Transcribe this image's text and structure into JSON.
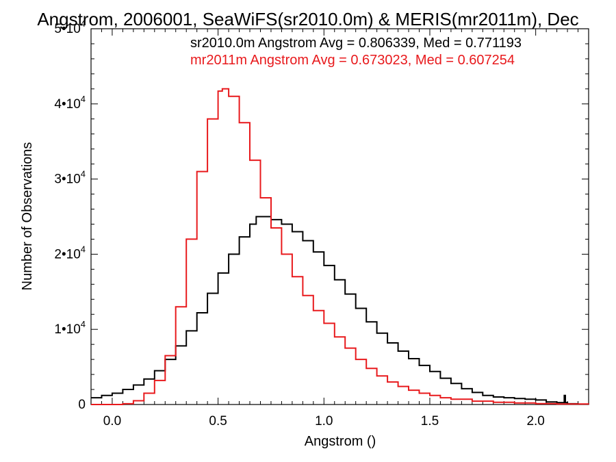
{
  "chart_data": {
    "type": "line",
    "title": "Angstrom, 2006001, SeaWiFS(sr2010.0m) & MERIS(mr2011m), Dec",
    "xlabel": "Angstrom ()",
    "ylabel": "Number of Observations",
    "xlim": [
      -0.1,
      2.25
    ],
    "ylim": [
      0,
      50000
    ],
    "x_ticks": [
      0.0,
      0.5,
      1.0,
      1.5,
      2.0
    ],
    "x_tick_labels": [
      "0.0",
      "0.5",
      "1.0",
      "1.5",
      "2.0"
    ],
    "y_ticks": [
      0,
      10000,
      20000,
      30000,
      40000,
      50000
    ],
    "y_tick_labels": [
      {
        "base": "0",
        "exp": ""
      },
      {
        "base": "1•10",
        "exp": "4"
      },
      {
        "base": "2•10",
        "exp": "4"
      },
      {
        "base": "3•10",
        "exp": "4"
      },
      {
        "base": "4•10",
        "exp": "4"
      },
      {
        "base": "5•10",
        "exp": "4"
      }
    ],
    "legend_placement": "top-right",
    "annotations": [
      {
        "text": "sr2010.0m Angstrom Avg = 0.806339, Med = 0.771193",
        "color": "#000000"
      },
      {
        "text": "mr2011m Angstrom Avg = 0.673023, Med = 0.607254",
        "color": "#e8191c"
      }
    ],
    "series": [
      {
        "color": "#000000",
        "step": true,
        "points": [
          [
            -0.1,
            900
          ],
          [
            -0.05,
            1200
          ],
          [
            0.0,
            1500
          ],
          [
            0.05,
            2000
          ],
          [
            0.1,
            2600
          ],
          [
            0.15,
            3400
          ],
          [
            0.2,
            4500
          ],
          [
            0.25,
            6000
          ],
          [
            0.3,
            7800
          ],
          [
            0.35,
            9800
          ],
          [
            0.4,
            12200
          ],
          [
            0.45,
            14800
          ],
          [
            0.5,
            17500
          ],
          [
            0.55,
            20000
          ],
          [
            0.6,
            22300
          ],
          [
            0.65,
            24000
          ],
          [
            0.68,
            25000
          ],
          [
            0.75,
            24600
          ],
          [
            0.8,
            24000
          ],
          [
            0.85,
            23000
          ],
          [
            0.9,
            21800
          ],
          [
            0.95,
            20300
          ],
          [
            1.0,
            18500
          ],
          [
            1.05,
            16600
          ],
          [
            1.1,
            14700
          ],
          [
            1.15,
            12800
          ],
          [
            1.2,
            11000
          ],
          [
            1.25,
            9500
          ],
          [
            1.3,
            8200
          ],
          [
            1.35,
            7100
          ],
          [
            1.4,
            6100
          ],
          [
            1.45,
            5200
          ],
          [
            1.5,
            4400
          ],
          [
            1.55,
            3500
          ],
          [
            1.6,
            2800
          ],
          [
            1.65,
            2100
          ],
          [
            1.7,
            1600
          ],
          [
            1.75,
            1200
          ],
          [
            1.8,
            1000
          ],
          [
            1.85,
            900
          ],
          [
            1.9,
            800
          ],
          [
            1.95,
            700
          ],
          [
            2.0,
            600
          ],
          [
            2.05,
            350
          ],
          [
            2.1,
            250
          ],
          [
            2.12,
            250
          ],
          [
            2.135,
            1200
          ],
          [
            2.14,
            250
          ],
          [
            2.15,
            100
          ],
          [
            2.2,
            50
          ],
          [
            2.25,
            30
          ]
        ]
      },
      {
        "color": "#e8191c",
        "step": true,
        "points": [
          [
            -0.1,
            0
          ],
          [
            0.0,
            0
          ],
          [
            0.05,
            100
          ],
          [
            0.1,
            500
          ],
          [
            0.15,
            1500
          ],
          [
            0.2,
            3200
          ],
          [
            0.25,
            6500
          ],
          [
            0.3,
            13000
          ],
          [
            0.35,
            22000
          ],
          [
            0.4,
            31000
          ],
          [
            0.45,
            38000
          ],
          [
            0.5,
            41700
          ],
          [
            0.52,
            42000
          ],
          [
            0.55,
            41000
          ],
          [
            0.6,
            37500
          ],
          [
            0.65,
            32500
          ],
          [
            0.7,
            27500
          ],
          [
            0.75,
            23500
          ],
          [
            0.8,
            20000
          ],
          [
            0.85,
            17000
          ],
          [
            0.9,
            14500
          ],
          [
            0.95,
            12500
          ],
          [
            1.0,
            10800
          ],
          [
            1.05,
            9000
          ],
          [
            1.1,
            7500
          ],
          [
            1.15,
            6000
          ],
          [
            1.2,
            4800
          ],
          [
            1.25,
            3800
          ],
          [
            1.3,
            3000
          ],
          [
            1.35,
            2400
          ],
          [
            1.4,
            1900
          ],
          [
            1.45,
            1500
          ],
          [
            1.5,
            1200
          ],
          [
            1.55,
            900
          ],
          [
            1.6,
            700
          ],
          [
            1.7,
            450
          ],
          [
            1.8,
            300
          ],
          [
            1.9,
            200
          ],
          [
            2.0,
            120
          ],
          [
            2.1,
            60
          ],
          [
            2.25,
            20
          ]
        ]
      }
    ]
  }
}
